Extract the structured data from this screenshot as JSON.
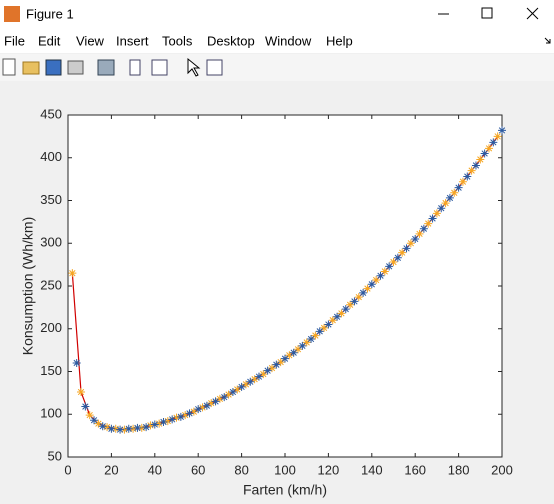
{
  "window": {
    "title": "Figure 1",
    "menu": [
      "File",
      "Edit",
      "View",
      "Insert",
      "Tools",
      "Desktop",
      "Window",
      "Help"
    ]
  },
  "chart_data": {
    "type": "line",
    "xlabel": "Farten (km/h)",
    "ylabel": "Konsumption (Wh/km)",
    "xlim": [
      0,
      200
    ],
    "ylim": [
      50,
      450
    ],
    "xticks": [
      0,
      20,
      40,
      60,
      80,
      100,
      120,
      140,
      160,
      180,
      200
    ],
    "yticks": [
      50,
      100,
      150,
      200,
      250,
      300,
      350,
      400,
      450
    ],
    "grid": false,
    "series": [
      {
        "color": "#d00000",
        "marker": "none",
        "x": [
          2,
          6,
          10,
          14,
          18,
          22,
          26,
          30,
          34,
          38,
          42,
          46,
          50,
          54,
          58,
          62,
          66,
          70,
          74,
          78,
          82,
          86,
          90,
          94,
          98,
          102,
          106,
          110,
          114,
          118,
          122,
          126,
          130,
          134,
          138,
          142,
          146,
          150,
          154,
          158,
          162,
          166,
          170,
          174,
          178,
          182,
          186,
          190,
          194,
          198
        ],
        "values": [
          265,
          126,
          99,
          89,
          85,
          83,
          82,
          83,
          84,
          87,
          89,
          92,
          96,
          99,
          103,
          108,
          113,
          118,
          123,
          129,
          135,
          141,
          147,
          154,
          161,
          169,
          176,
          184,
          192,
          201,
          210,
          218,
          228,
          237,
          247,
          257,
          267,
          278,
          289,
          300,
          311,
          323,
          335,
          347,
          359,
          372,
          385,
          398,
          411,
          425
        ]
      },
      {
        "color": "#f5a623",
        "marker": "*",
        "x": [
          2,
          6,
          10,
          14,
          18,
          22,
          26,
          30,
          34,
          38,
          42,
          46,
          50,
          54,
          58,
          62,
          66,
          70,
          74,
          78,
          82,
          86,
          90,
          94,
          98,
          102,
          106,
          110,
          114,
          118,
          122,
          126,
          130,
          134,
          138,
          142,
          146,
          150,
          154,
          158,
          162,
          166,
          170,
          174,
          178,
          182,
          186,
          190,
          194,
          198
        ],
        "values": [
          265,
          126,
          99,
          89,
          85,
          83,
          82,
          83,
          84,
          87,
          89,
          92,
          96,
          99,
          103,
          108,
          113,
          118,
          123,
          129,
          135,
          141,
          147,
          154,
          161,
          169,
          176,
          184,
          192,
          201,
          210,
          218,
          228,
          237,
          247,
          257,
          267,
          278,
          289,
          300,
          311,
          323,
          335,
          347,
          359,
          372,
          385,
          398,
          411,
          425
        ]
      },
      {
        "color": "#2c5aa0",
        "marker": "*",
        "x": [
          4,
          8,
          12,
          16,
          20,
          24,
          28,
          32,
          36,
          40,
          44,
          48,
          52,
          56,
          60,
          64,
          68,
          72,
          76,
          80,
          84,
          88,
          92,
          96,
          100,
          104,
          108,
          112,
          116,
          120,
          124,
          128,
          132,
          136,
          140,
          144,
          148,
          152,
          156,
          160,
          164,
          168,
          172,
          176,
          180,
          184,
          188,
          192,
          196,
          200
        ],
        "values": [
          160,
          109,
          93,
          86,
          83,
          82,
          83,
          84,
          85,
          88,
          91,
          94,
          97,
          101,
          106,
          110,
          115,
          120,
          126,
          132,
          138,
          144,
          151,
          158,
          165,
          172,
          180,
          188,
          197,
          205,
          214,
          223,
          232,
          242,
          252,
          262,
          273,
          283,
          294,
          305,
          317,
          329,
          341,
          353,
          365,
          378,
          391,
          405,
          418,
          432
        ]
      }
    ]
  }
}
